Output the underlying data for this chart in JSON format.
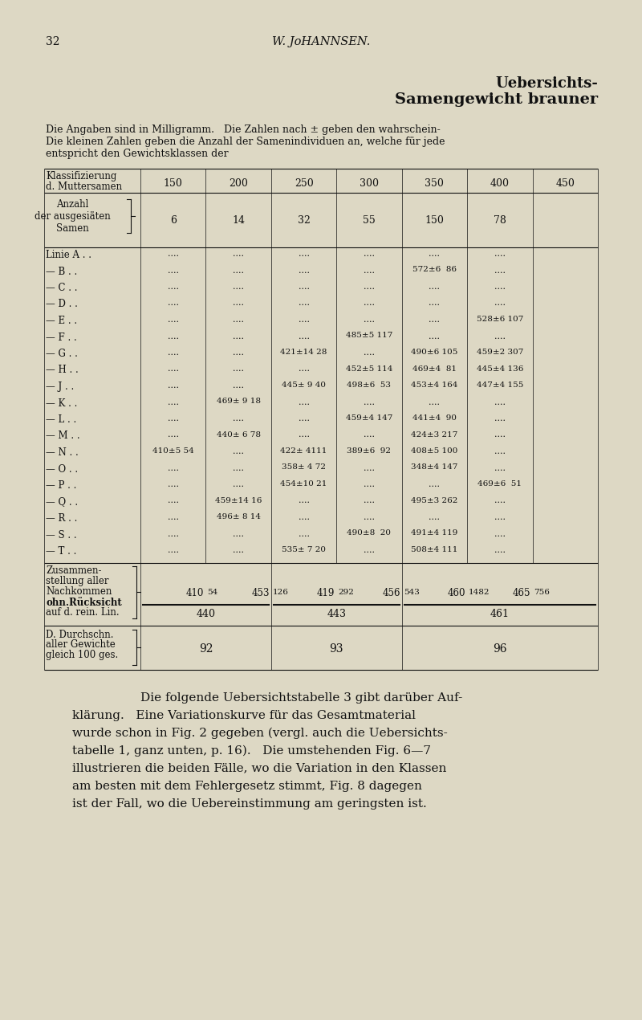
{
  "bg_color": "#ddd8c4",
  "text_color": "#111111",
  "page_number": "32",
  "header_center": "W. JоHANNSEN.",
  "title_right1": "Uebersichts-",
  "title_right2": "Samengewicht brauner",
  "intro1": "Die Angaben sind in Milligramm.   Die Zahlen nach ± geben den wahrschein-",
  "intro2": "Die kleinen Zahlen geben die Anzahl der Samenindividuen an, welche für jede",
  "intro3": "entspricht den Gewichtsklassen der",
  "col_labels": [
    "150",
    "200",
    "250",
    "300",
    "350",
    "400",
    "450"
  ],
  "anzahl_vals": [
    "6",
    "14",
    "32",
    "55",
    "150",
    "78"
  ],
  "lines": [
    [
      "Linie A . .",
      "....",
      "....",
      "....",
      "....",
      "....",
      "...."
    ],
    [
      "— B . .",
      "....",
      "....",
      "....",
      "....",
      "572±6  86",
      "...."
    ],
    [
      "— C . .",
      "....",
      "....",
      "....",
      "....",
      "....",
      "...."
    ],
    [
      "— D . .",
      "....",
      "....",
      "....",
      "....",
      "....",
      "...."
    ],
    [
      "— E . .",
      "....",
      "....",
      "....",
      "....",
      "....",
      "528±6 107"
    ],
    [
      "— F . .",
      "....",
      "....",
      "....",
      "485±5 117",
      "....",
      "...."
    ],
    [
      "— G . .",
      "....",
      "....",
      "421±14 28",
      "....",
      "490±6 105",
      "459±2 307"
    ],
    [
      "— H . .",
      "....",
      "....",
      "....",
      "452±5 114",
      "469±4  81",
      "445±4 136"
    ],
    [
      "— J . .",
      "....",
      "....",
      "445± 9 40",
      "498±6  53",
      "453±4 164",
      "447±4 155"
    ],
    [
      "— K . .",
      "....",
      "469± 9 18",
      "....",
      "....",
      "....",
      "...."
    ],
    [
      "— L . .",
      "....",
      "....",
      "....",
      "459±4 147",
      "441±4  90",
      "...."
    ],
    [
      "— M . .",
      "....",
      "440± 6 78",
      "....",
      "....",
      "424±3 217",
      "...."
    ],
    [
      "— N . .",
      "410±5 54",
      "....",
      "422± 4111",
      "389±6  92",
      "408±5 100",
      "...."
    ],
    [
      "— O . .",
      "....",
      "....",
      "358± 4 72",
      "....",
      "348±4 147",
      "...."
    ],
    [
      "— P . .",
      "....",
      "....",
      "454±10 21",
      "....",
      "....",
      "469±6  51"
    ],
    [
      "— Q . .",
      "....",
      "459±14 16",
      "....",
      "....",
      "495±3 262",
      "...."
    ],
    [
      "— R . .",
      "....",
      "496± 8 14",
      "....",
      "....",
      "....",
      "...."
    ],
    [
      "— S . .",
      "....",
      "....",
      "....",
      "490±8  20",
      "491±4 119",
      "...."
    ],
    [
      "— T . .",
      "....",
      "....",
      "535± 7 20",
      "....",
      "508±4 111",
      "...."
    ]
  ],
  "zusammen_label": [
    "Zusammen-",
    "stellung aller",
    "Nachkommen",
    "ohn.Rücksicht",
    "auf d. rein. Lin."
  ],
  "zusammen_row": [
    "410",
    "54",
    "453",
    "126",
    "419",
    "292",
    "456",
    "543",
    "460",
    "1482",
    "465",
    "756"
  ],
  "mittel_vals": [
    "440",
    "443",
    "461"
  ],
  "durchschn_label": [
    "D. Durchschn.",
    "aller Gewichte",
    "gleich 100 ges."
  ],
  "durchschn_vals": [
    "92",
    "93",
    "96"
  ],
  "closing_text": [
    "Die folgende Uebersichtstabelle 3 gibt darüber Auf-",
    "klärung.   Eine Variationskurve für das Gesamtmaterial",
    "wurde schon in Fig. 2 gegeben (vergl. auch die Uebersichts-",
    "tabelle 1, ganz unten, p. 16).   Die umstehenden Fig. 6—7",
    "illustrieren die beiden Fälle, wo die Variation in den Klassen",
    "am besten mit dem Fehlergesetz stimmt, Fig. 8 dagegen",
    "ist der Fall, wo die Uebereinstimmung am geringsten ist."
  ]
}
